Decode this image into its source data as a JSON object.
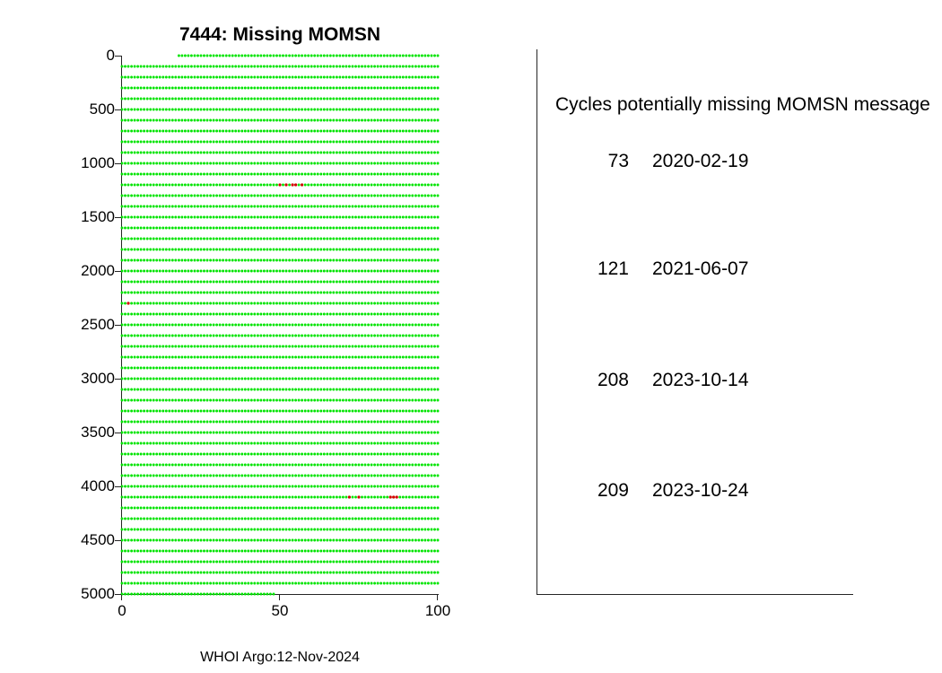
{
  "footer": "WHOI Argo:12-Nov-2024",
  "panel": {
    "heading": "Cycles potentially missing MOMSN message",
    "entries": [
      {
        "cycle": "73",
        "date": "2020-02-19"
      },
      {
        "cycle": "121",
        "date": "2021-06-07"
      },
      {
        "cycle": "208",
        "date": "2023-10-14"
      },
      {
        "cycle": "209",
        "date": "2023-10-24"
      }
    ]
  },
  "chart_data": {
    "type": "scatter",
    "title": "7444: Missing MOMSN",
    "xlabel": "",
    "ylabel": "",
    "xlim": [
      0,
      100
    ],
    "ylim": [
      0,
      5000
    ],
    "y_axis_inverted": true,
    "x_ticks": [
      0,
      50,
      100
    ],
    "y_ticks": [
      0,
      500,
      1000,
      1500,
      2000,
      2500,
      3000,
      3500,
      4000,
      4500,
      5000
    ],
    "grid": false,
    "legend": "none",
    "marker": "dot",
    "marker_color": "#00e400",
    "missing_marker_color": "#d40000",
    "rows": {
      "description": "green dotted rows of received MOMSN, one row per 100 messages",
      "y_step": 100,
      "x_step": 1,
      "x_start": 0,
      "x_end": 100,
      "first_row": {
        "y": 0,
        "x_start": 18,
        "x_end": 100
      },
      "last_row": {
        "y": 5000,
        "x_start": 0,
        "x_end": 48
      }
    },
    "missing_points": [
      {
        "y": 1200,
        "x": [
          50,
          52,
          54,
          55,
          57
        ]
      },
      {
        "y": 2300,
        "x": [
          2
        ]
      },
      {
        "y": 4100,
        "x": [
          72,
          75,
          85,
          86,
          87
        ]
      }
    ]
  }
}
